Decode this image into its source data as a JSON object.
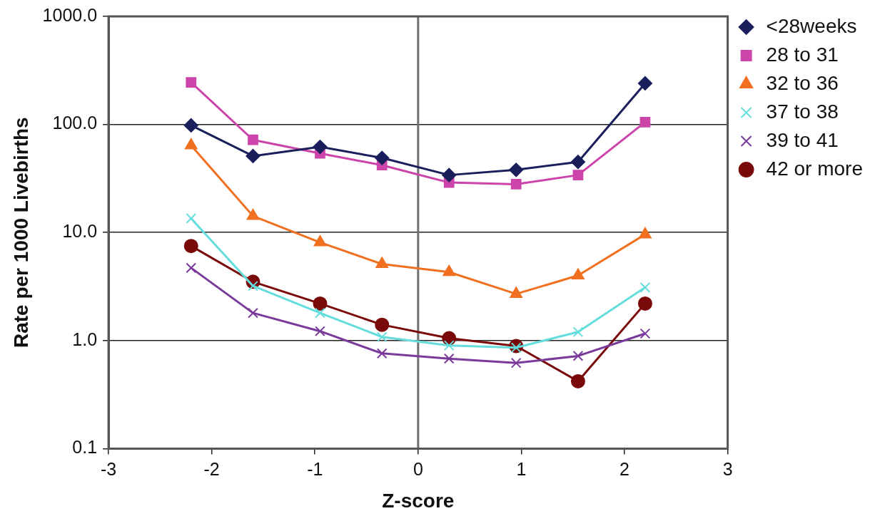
{
  "chart_data": {
    "type": "line",
    "xlabel": "Z-score",
    "ylabel": "Rate per 1000 Livebirths",
    "x": [
      -2.2,
      -1.6,
      -0.95,
      -0.35,
      0.3,
      0.95,
      1.55,
      2.2
    ],
    "series": [
      {
        "name": "<28weeks",
        "color": "#1a1f5c",
        "marker": "diamond",
        "values": [
          98,
          51,
          62,
          49,
          34,
          38,
          45,
          240
        ]
      },
      {
        "name": "28 to 31",
        "color": "#cc44aa",
        "marker": "square",
        "values": [
          245,
          72,
          54,
          42,
          29,
          28,
          34,
          105
        ]
      },
      {
        "name": "32 to 36",
        "color": "#f07020",
        "marker": "triangle",
        "values": [
          64,
          14.2,
          8.1,
          5.1,
          4.3,
          2.7,
          4.0,
          9.6
        ]
      },
      {
        "name": "37 to 38",
        "color": "#66dddd",
        "marker": "cross",
        "values": [
          13.5,
          3.2,
          1.8,
          1.08,
          0.9,
          0.86,
          1.2,
          3.1
        ]
      },
      {
        "name": "39 to 41",
        "color": "#7a3a9a",
        "marker": "cross",
        "values": [
          4.7,
          1.8,
          1.22,
          0.76,
          0.68,
          0.62,
          0.72,
          1.16
        ]
      },
      {
        "name": "42 or more",
        "color": "#7a0a0a",
        "marker": "circle",
        "values": [
          7.5,
          3.5,
          2.2,
          1.4,
          1.05,
          0.89,
          0.42,
          2.2
        ]
      }
    ],
    "xlim": [
      -3,
      3
    ],
    "xticks": [
      -3,
      -2,
      -1,
      0,
      1,
      2,
      3
    ],
    "ylim": [
      0.1,
      1000
    ],
    "yticks": [
      {
        "value": 0.1,
        "label": "0.1"
      },
      {
        "value": 1,
        "label": "1.0"
      },
      {
        "value": 10,
        "label": "10.0"
      },
      {
        "value": 100,
        "label": "100.0"
      },
      {
        "value": 1000,
        "label": "1000.0"
      }
    ],
    "log": "y",
    "grid": "y",
    "legend": "top right",
    "ref_lines": [
      {
        "axis": "x",
        "value": 0,
        "color": "#707070"
      }
    ]
  }
}
